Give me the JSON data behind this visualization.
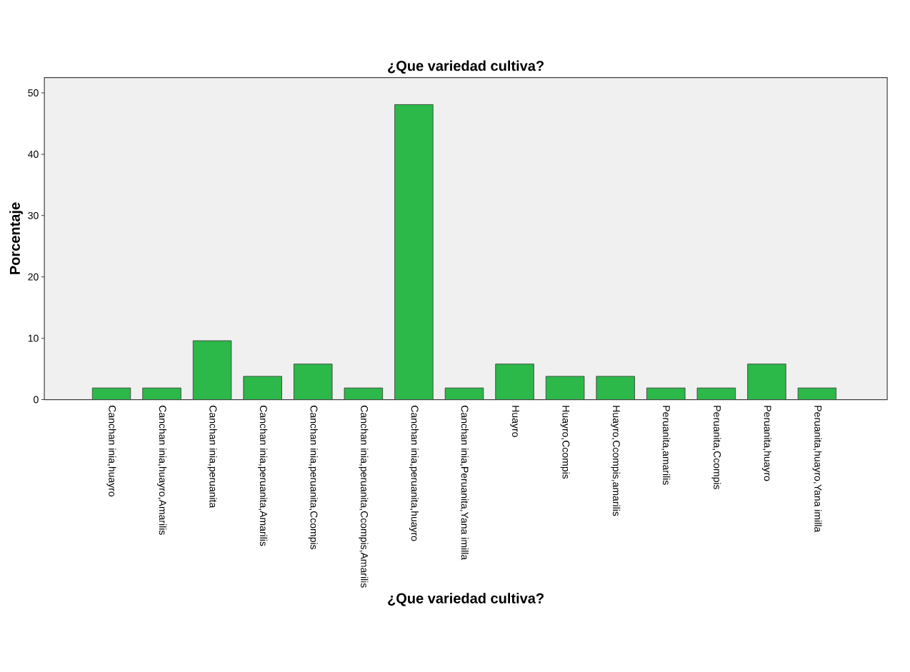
{
  "chart_data": {
    "type": "bar",
    "title": "¿Que variedad cultiva?",
    "xlabel": "¿Que variedad cultiva?",
    "ylabel": "Porcentaje",
    "categories": [
      "Canchan inia,huayro",
      "Canchan inia,huayro,Amarilis",
      "Canchan inia,peruanita",
      "Canchan inia,peruanita,Amarilis",
      "Canchan inia,peruanita,Ccompis",
      "Canchan inia,peruanita,Ccompis,Amarilis",
      "Canchan inia,peruanita,huayro",
      "Canchan inia,Peruanita,Yana imilla",
      "Huayro",
      "Huayro,Ccompis",
      "Huayro,Ccompis,amarilis",
      "Peruanita,amarilis",
      "Peruanita,Ccompis",
      "Peruanita,huayro",
      "Peruanita,huayro,Yana imilla"
    ],
    "values": [
      1.9,
      1.9,
      9.6,
      3.8,
      5.8,
      1.9,
      48.1,
      1.9,
      5.8,
      3.8,
      3.8,
      1.9,
      1.9,
      5.8,
      1.9
    ],
    "color": "#2db84a",
    "ylim": [
      0,
      52.5
    ],
    "yticks": [
      0,
      10,
      20,
      30,
      40,
      50
    ]
  }
}
